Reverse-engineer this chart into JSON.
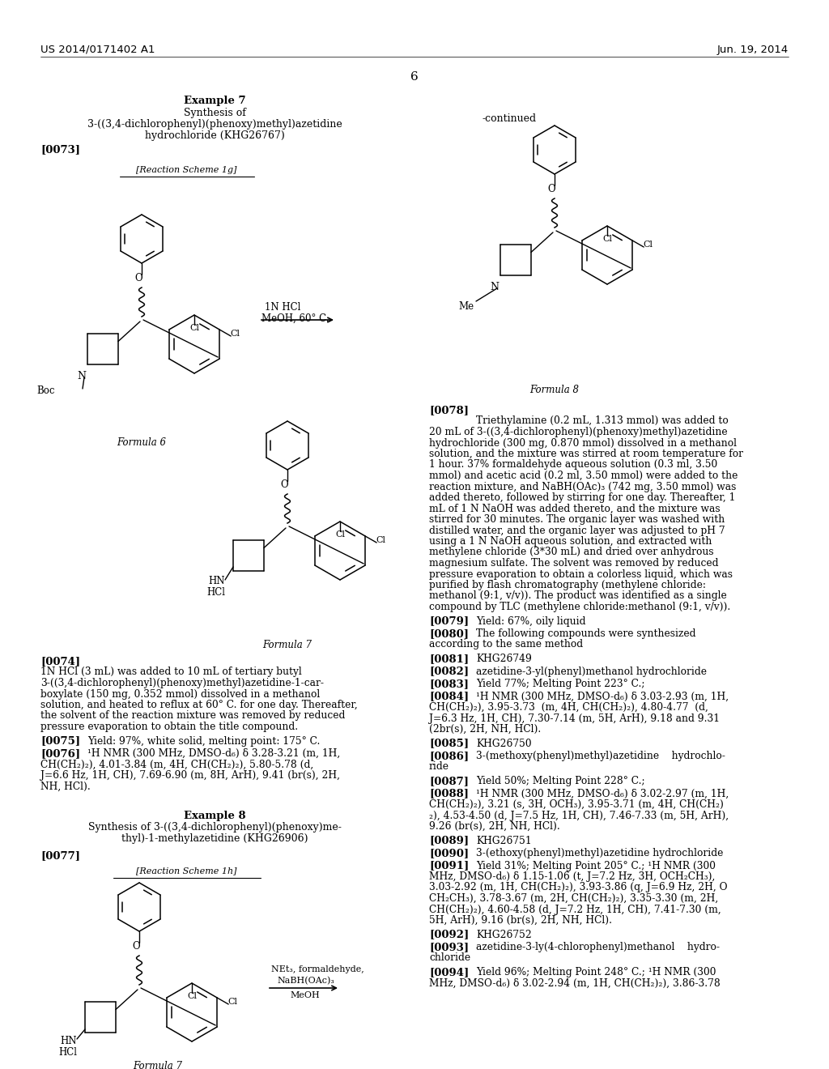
{
  "bg": "#ffffff",
  "header_left": "US 2014/0171402 A1",
  "header_right": "Jun. 19, 2014",
  "page_num": "6"
}
